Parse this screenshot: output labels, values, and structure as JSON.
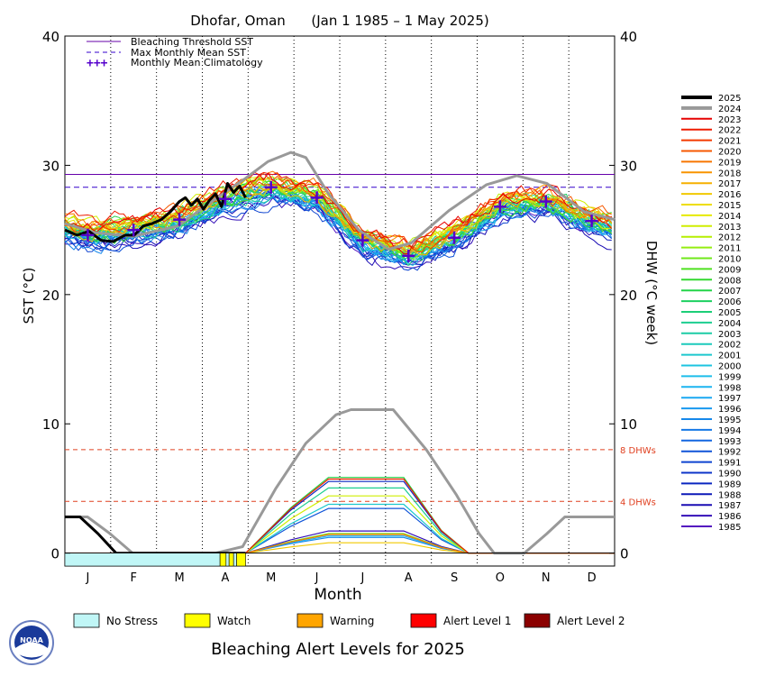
{
  "chart_data": {
    "type": "line",
    "title": "Dhofar, Oman      (Jan 1 1985 – 1 May 2025)",
    "xlabel": "Month",
    "ylabel_left": "SST (°C)",
    "ylabel_right": "DHW (°C week)",
    "ylim": [
      -1,
      40
    ],
    "yticks_left": [
      "40",
      "30",
      "20",
      "10",
      "0"
    ],
    "yticks_right": [
      "40",
      "30",
      "20",
      "10",
      "0"
    ],
    "months": [
      "J",
      "F",
      "M",
      "A",
      "M",
      "J",
      "J",
      "A",
      "S",
      "O",
      "N",
      "D"
    ],
    "bleaching_threshold": 29.3,
    "max_monthly_mean": 28.3,
    "dhw_lines": [
      {
        "value": 8,
        "label": "8 DHWs"
      },
      {
        "value": 4,
        "label": "4 DHWs"
      }
    ],
    "legend": {
      "bleaching": "Bleaching Threshold SST",
      "mmm": "Max Monthly Mean SST",
      "climatology": "Monthly Mean Climatology",
      "location": "top-left"
    },
    "climatology": [
      {
        "month": "J",
        "value": 24.6
      },
      {
        "month": "F",
        "value": 25.0
      },
      {
        "month": "M",
        "value": 25.8
      },
      {
        "month": "A",
        "value": 27.4
      },
      {
        "month": "M",
        "value": 28.3
      },
      {
        "month": "J",
        "value": 27.5
      },
      {
        "month": "J",
        "value": 24.2
      },
      {
        "month": "A",
        "value": 23.0
      },
      {
        "month": "S",
        "value": 24.4
      },
      {
        "month": "O",
        "value": 26.8
      },
      {
        "month": "N",
        "value": 27.2
      },
      {
        "month": "D",
        "value": 25.7
      }
    ],
    "years": [
      "2025",
      "2024",
      "2023",
      "2022",
      "2021",
      "2020",
      "2019",
      "2018",
      "2017",
      "2016",
      "2015",
      "2014",
      "2013",
      "2012",
      "2011",
      "2010",
      "2009",
      "2008",
      "2007",
      "2006",
      "2005",
      "2004",
      "2003",
      "2002",
      "2001",
      "2000",
      "1999",
      "1998",
      "1997",
      "1996",
      "1995",
      "1994",
      "1993",
      "1992",
      "1991",
      "1990",
      "1989",
      "1988",
      "1987",
      "1986",
      "1985"
    ],
    "year_colors": [
      "#000000",
      "#999999",
      "#e60000",
      "#ee1c00",
      "#f33a00",
      "#f65800",
      "#f87600",
      "#f89400",
      "#f5b000",
      "#f1c800",
      "#eedd00",
      "#e6ea00",
      "#cfee00",
      "#b5ef00",
      "#95ee10",
      "#6fe81a",
      "#4fe020",
      "#33d830",
      "#22d448",
      "#1cd060",
      "#1cce78",
      "#1cce90",
      "#1ccca6",
      "#1ccabb",
      "#1cc8ce",
      "#1cc4e0",
      "#1cbeea",
      "#1cb4f0",
      "#1aa8f2",
      "#1898ef",
      "#1688ea",
      "#1478e6",
      "#1266e0",
      "#1054d8",
      "#0e44d0",
      "#0c34c8",
      "#0a26c0",
      "#0c18b8",
      "#1a0cb4",
      "#3410b8",
      "#5414c0"
    ],
    "sst_2025": [
      {
        "day": 0,
        "value": 25.0
      },
      {
        "day": 8,
        "value": 24.6
      },
      {
        "day": 16,
        "value": 24.9
      },
      {
        "day": 24,
        "value": 24.2
      },
      {
        "day": 32,
        "value": 24.1
      },
      {
        "day": 40,
        "value": 24.6
      },
      {
        "day": 46,
        "value": 24.6
      },
      {
        "day": 52,
        "value": 25.3
      },
      {
        "day": 58,
        "value": 25.5
      },
      {
        "day": 64,
        "value": 25.8
      },
      {
        "day": 70,
        "value": 26.4
      },
      {
        "day": 76,
        "value": 27.2
      },
      {
        "day": 80,
        "value": 27.5
      },
      {
        "day": 84,
        "value": 26.9
      },
      {
        "day": 88,
        "value": 27.4
      },
      {
        "day": 92,
        "value": 26.6
      },
      {
        "day": 96,
        "value": 27.3
      },
      {
        "day": 100,
        "value": 27.8
      },
      {
        "day": 104,
        "value": 26.8
      },
      {
        "day": 108,
        "value": 28.6
      },
      {
        "day": 112,
        "value": 27.9
      },
      {
        "day": 116,
        "value": 28.4
      },
      {
        "day": 120,
        "value": 27.5
      }
    ],
    "sst_2024": [
      {
        "day": 0,
        "value": 25.5
      },
      {
        "day": 20,
        "value": 24.8
      },
      {
        "day": 45,
        "value": 24.5
      },
      {
        "day": 75,
        "value": 25.3
      },
      {
        "day": 100,
        "value": 27.4
      },
      {
        "day": 120,
        "value": 29.0
      },
      {
        "day": 135,
        "value": 30.3
      },
      {
        "day": 150,
        "value": 31.0
      },
      {
        "day": 160,
        "value": 30.6
      },
      {
        "day": 175,
        "value": 27.8
      },
      {
        "day": 195,
        "value": 25.0
      },
      {
        "day": 215,
        "value": 23.5
      },
      {
        "day": 230,
        "value": 24.0
      },
      {
        "day": 255,
        "value": 26.5
      },
      {
        "day": 280,
        "value": 28.5
      },
      {
        "day": 300,
        "value": 29.2
      },
      {
        "day": 320,
        "value": 28.6
      },
      {
        "day": 345,
        "value": 26.4
      },
      {
        "day": 365,
        "value": 25.8
      }
    ],
    "dhw_2024": [
      {
        "day": 0,
        "value": 2.8
      },
      {
        "day": 15,
        "value": 2.8
      },
      {
        "day": 30,
        "value": 1.5
      },
      {
        "day": 45,
        "value": 0
      },
      {
        "day": 100,
        "value": 0
      },
      {
        "day": 118,
        "value": 0.5
      },
      {
        "day": 140,
        "value": 5
      },
      {
        "day": 160,
        "value": 8.5
      },
      {
        "day": 180,
        "value": 10.7
      },
      {
        "day": 190,
        "value": 11.1
      },
      {
        "day": 218,
        "value": 11.1
      },
      {
        "day": 240,
        "value": 8
      },
      {
        "day": 260,
        "value": 4.5
      },
      {
        "day": 275,
        "value": 1.5
      },
      {
        "day": 285,
        "value": 0
      },
      {
        "day": 305,
        "value": 0
      },
      {
        "day": 320,
        "value": 1.5
      },
      {
        "day": 332,
        "value": 2.8
      },
      {
        "day": 365,
        "value": 2.8
      }
    ],
    "dhw_2025": [
      {
        "day": 0,
        "value": 2.8
      },
      {
        "day": 10,
        "value": 2.8
      },
      {
        "day": 22,
        "value": 1.5
      },
      {
        "day": 34,
        "value": 0
      },
      {
        "day": 120,
        "value": 0
      }
    ],
    "alert_strip": [
      {
        "from_day": 0,
        "to_day": 103,
        "level": "No Stress"
      },
      {
        "from_day": 103,
        "to_day": 107,
        "level": "Watch"
      },
      {
        "from_day": 107,
        "to_day": 109,
        "level": "No Stress"
      },
      {
        "from_day": 109,
        "to_day": 112,
        "level": "Watch"
      },
      {
        "from_day": 112,
        "to_day": 114,
        "level": "No Stress"
      },
      {
        "from_day": 114,
        "to_day": 120,
        "level": "Watch"
      }
    ]
  },
  "alert_legend": {
    "items": [
      {
        "label": "No Stress",
        "color": "#c0f6f6"
      },
      {
        "label": "Watch",
        "color": "#ffff00"
      },
      {
        "label": "Warning",
        "color": "#ffa500"
      },
      {
        "label": "Alert Level 1",
        "color": "#ff0000"
      },
      {
        "label": "Alert Level 2",
        "color": "#8b0000"
      }
    ]
  },
  "footer": {
    "title": "Bleaching Alert Levels for 2025",
    "logo_text": "NOAA"
  }
}
